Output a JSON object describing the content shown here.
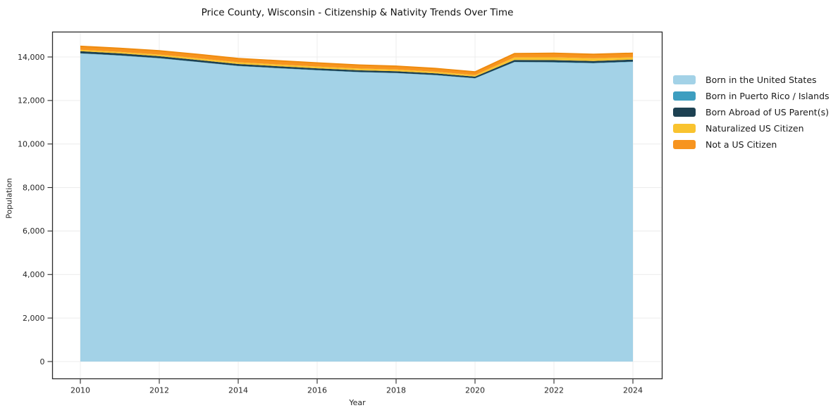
{
  "title": "Price County, Wisconsin - Citizenship & Nativity Trends Over Time",
  "chart_data": {
    "type": "area",
    "stacked": true,
    "title": "Price County, Wisconsin - Citizenship & Nativity Trends Over Time",
    "xlabel": "Year",
    "ylabel": "Population",
    "grid": true,
    "legend_position": "right-outside",
    "x": [
      2010,
      2011,
      2012,
      2013,
      2014,
      2015,
      2016,
      2017,
      2018,
      2019,
      2020,
      2021,
      2022,
      2023,
      2024
    ],
    "x_ticks": [
      2010,
      2012,
      2014,
      2016,
      2018,
      2020,
      2022,
      2024
    ],
    "x_tick_labels": [
      "2010",
      "2012",
      "2014",
      "2016",
      "2018",
      "2020",
      "2022",
      "2024"
    ],
    "y_ticks": [
      0,
      2000,
      4000,
      6000,
      8000,
      10000,
      12000,
      14000
    ],
    "y_tick_labels": [
      "0",
      "2,000",
      "4,000",
      "6,000",
      "8,000",
      "10,000",
      "12,000",
      "14,000"
    ],
    "ylim": [
      0,
      15100
    ],
    "series": [
      {
        "name": "Born in the United States",
        "color": "#a3d2e7",
        "values": [
          14160,
          14060,
          13935,
          13760,
          13580,
          13480,
          13385,
          13300,
          13255,
          13160,
          13015,
          13760,
          13745,
          13710,
          13770
        ]
      },
      {
        "name": "Born in Puerto Rico / Islands",
        "color": "#3d9ec0",
        "values": [
          12,
          12,
          12,
          12,
          12,
          12,
          12,
          12,
          12,
          12,
          12,
          15,
          15,
          15,
          15
        ]
      },
      {
        "name": "Born Abroad of US Parent(s)",
        "color": "#1d4152",
        "values": [
          95,
          92,
          90,
          87,
          85,
          83,
          81,
          79,
          77,
          74,
          70,
          90,
          95,
          90,
          95
        ]
      },
      {
        "name": "Naturalized US Citizen",
        "color": "#f9c32f",
        "values": [
          65,
          68,
          72,
          76,
          79,
          81,
          82,
          81,
          79,
          76,
          72,
          115,
          130,
          125,
          100
        ]
      },
      {
        "name": "Not a US Citizen",
        "color": "#f7941f",
        "values": [
          160,
          168,
          175,
          180,
          177,
          172,
          167,
          162,
          157,
          151,
          145,
          175,
          190,
          185,
          195
        ]
      }
    ],
    "colors": {
      "grid": "#ececec",
      "spine": "#2b2b2b",
      "tick_text": "#262626",
      "top_edge": "#ee8a0d"
    }
  }
}
